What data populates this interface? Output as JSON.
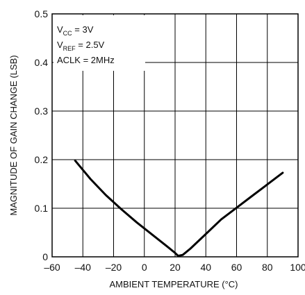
{
  "chart_data": {
    "type": "line",
    "xlabel": "AMBIENT TEMPERATURE (°C)",
    "ylabel": "MAGNITUDE OF GAIN CHANGE (LSB)",
    "xlim": [
      -60,
      100
    ],
    "ylim": [
      0,
      0.5
    ],
    "xticks": [
      -60,
      -40,
      -20,
      0,
      20,
      40,
      60,
      80,
      100
    ],
    "xtick_labels": [
      "–60",
      "–40",
      "–20",
      "0",
      "20",
      "40",
      "60",
      "80",
      "100"
    ],
    "yticks": [
      0,
      0.1,
      0.2,
      0.3,
      0.4,
      0.5
    ],
    "ytick_labels": [
      "0",
      "0.1",
      "0.2",
      "0.3",
      "0.4",
      "0.5"
    ],
    "grid": true,
    "annotations": {
      "vcc_main": "V",
      "vcc_sub": "CC",
      "vcc_rest": " = 3V",
      "vref_main": "V",
      "vref_sub": "REF",
      "vref_rest": " = 2.5V",
      "aclk": "ACLK = 2MHz"
    },
    "series": [
      {
        "x": [
          -45,
          -35,
          -25,
          -15,
          -5,
          5,
          15,
          20,
          22,
          25,
          30,
          40,
          50,
          60,
          70,
          80,
          90
        ],
        "y": [
          0.198,
          0.16,
          0.127,
          0.098,
          0.071,
          0.046,
          0.021,
          0.008,
          0.002,
          0.004,
          0.017,
          0.047,
          0.077,
          0.101,
          0.125,
          0.149,
          0.173
        ]
      }
    ]
  }
}
